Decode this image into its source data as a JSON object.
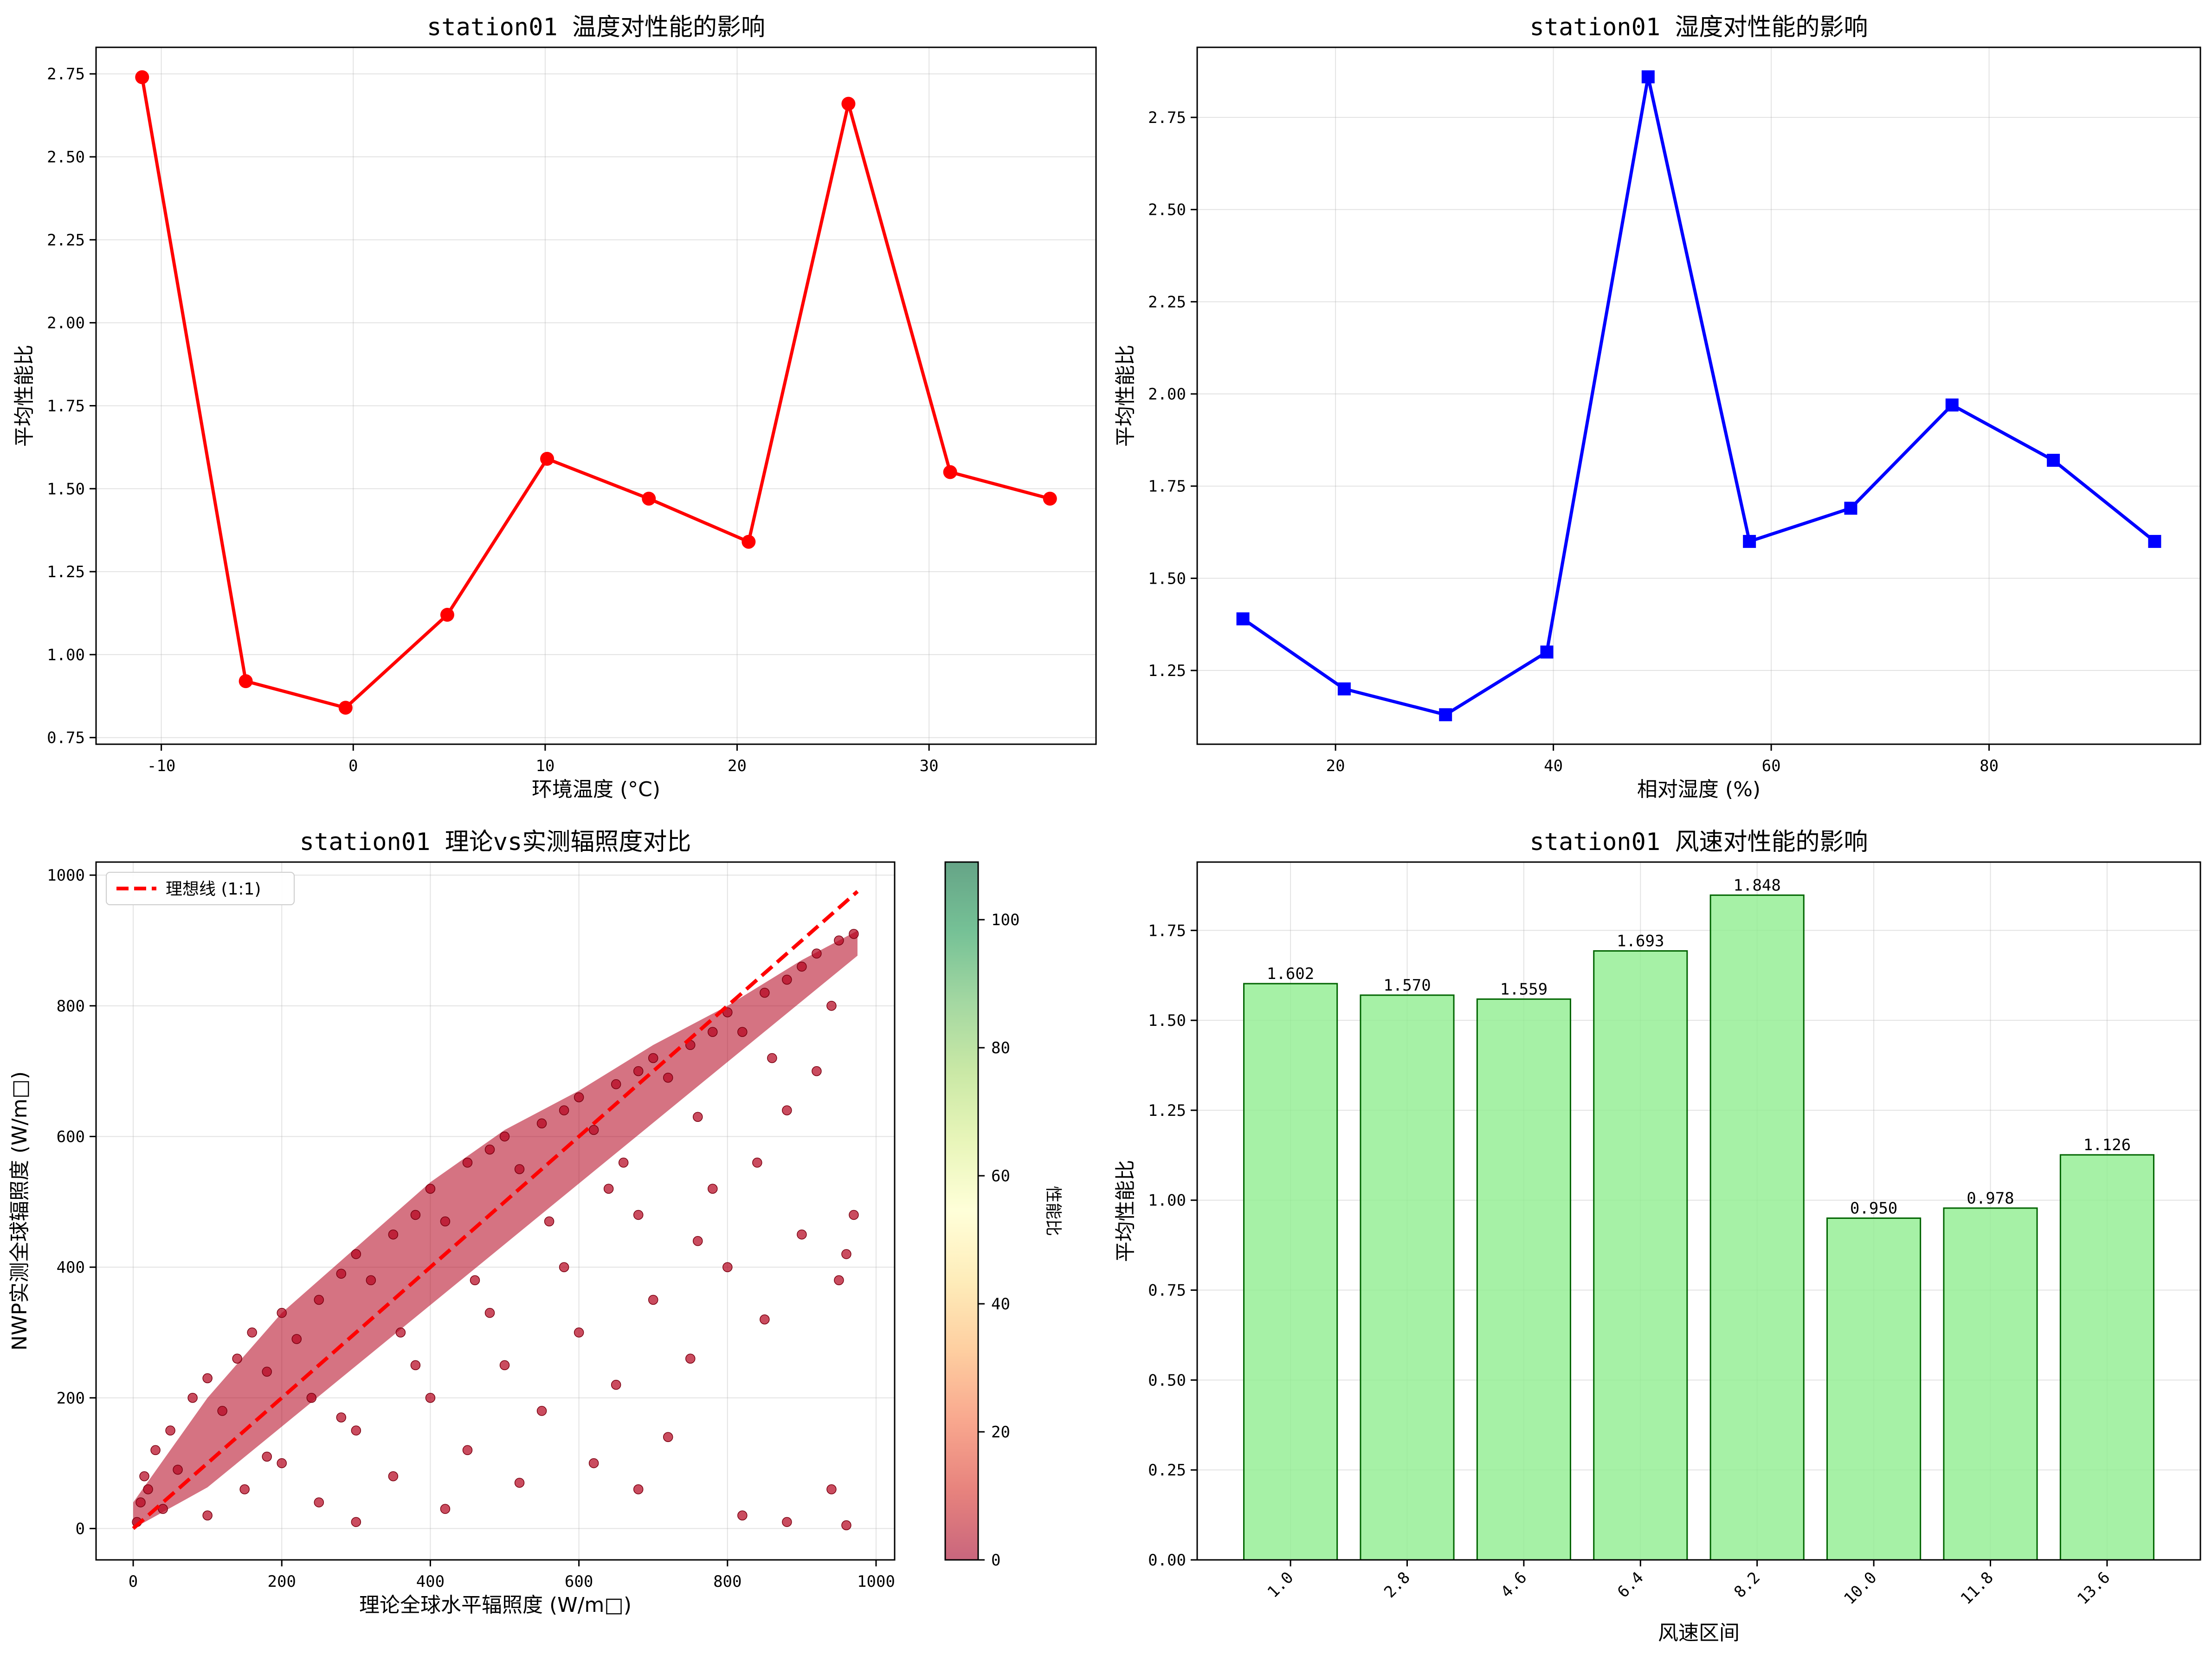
{
  "chart_data": [
    {
      "type": "line",
      "title": "station01 温度对性能的影响",
      "xlabel": "环境温度 (°C)",
      "ylabel": "平均性能比",
      "x": [
        -11.0,
        -5.6,
        -0.4,
        4.9,
        10.1,
        15.4,
        20.6,
        25.8,
        31.1,
        36.3
      ],
      "values": [
        2.74,
        0.92,
        0.84,
        1.12,
        1.59,
        1.47,
        1.34,
        2.66,
        1.55,
        1.47
      ],
      "xlim": [
        -13.4,
        38.7
      ],
      "ylim": [
        0.73,
        2.83
      ],
      "xticks": [
        -10,
        0,
        10,
        20,
        30
      ],
      "yticks": [
        0.75,
        1.0,
        1.25,
        1.5,
        1.75,
        2.0,
        2.25,
        2.5,
        2.75
      ],
      "color": "#ff0000",
      "marker": "circle",
      "grid": true
    },
    {
      "type": "line",
      "title": "station01 湿度对性能的影响",
      "xlabel": "相对湿度 (%)",
      "ylabel": "平均性能比",
      "x": [
        11.5,
        20.8,
        30.1,
        39.4,
        48.7,
        58.0,
        67.3,
        76.6,
        85.9,
        95.2
      ],
      "values": [
        1.39,
        1.2,
        1.13,
        1.3,
        2.86,
        1.6,
        1.69,
        1.97,
        1.82,
        1.6
      ],
      "xlim": [
        7.3,
        99.4
      ],
      "ylim": [
        1.05,
        2.94
      ],
      "xticks": [
        20,
        40,
        60,
        80
      ],
      "yticks": [
        1.25,
        1.5,
        1.75,
        2.0,
        2.25,
        2.5,
        2.75
      ],
      "color": "#0000ff",
      "marker": "square",
      "grid": true
    },
    {
      "type": "scatter",
      "title": "station01 理论vs实测辐照度对比",
      "xlabel": "理论全球水平辐照度 (W/m□)",
      "ylabel": "NWP实测全球辐照度 (W/m□)",
      "colorbar_label": "性能比",
      "colorbar_ticks": [
        0,
        20,
        40,
        60,
        80,
        100
      ],
      "colorbar_range": [
        0,
        109
      ],
      "colormap": "RdYlGn",
      "point_color": "#b3001b",
      "legend": {
        "label": "理想线 (1:1)",
        "position": "upper left"
      },
      "ideal_line": {
        "x": [
          0,
          975
        ],
        "y": [
          0,
          975
        ],
        "color": "#ff0000",
        "style": "dashed"
      },
      "upper_band": [
        [
          0,
          40
        ],
        [
          100,
          200
        ],
        [
          200,
          330
        ],
        [
          300,
          430
        ],
        [
          400,
          530
        ],
        [
          500,
          610
        ],
        [
          600,
          670
        ],
        [
          700,
          740
        ],
        [
          800,
          800
        ],
        [
          900,
          870
        ],
        [
          975,
          915
        ]
      ],
      "sample_points": [
        [
          5,
          10
        ],
        [
          10,
          40
        ],
        [
          15,
          80
        ],
        [
          20,
          60
        ],
        [
          30,
          120
        ],
        [
          40,
          30
        ],
        [
          50,
          150
        ],
        [
          60,
          90
        ],
        [
          80,
          200
        ],
        [
          100,
          230
        ],
        [
          120,
          180
        ],
        [
          140,
          260
        ],
        [
          160,
          300
        ],
        [
          180,
          240
        ],
        [
          200,
          330
        ],
        [
          220,
          290
        ],
        [
          250,
          350
        ],
        [
          280,
          390
        ],
        [
          300,
          420
        ],
        [
          320,
          380
        ],
        [
          350,
          450
        ],
        [
          380,
          480
        ],
        [
          400,
          520
        ],
        [
          420,
          470
        ],
        [
          450,
          560
        ],
        [
          480,
          580
        ],
        [
          500,
          600
        ],
        [
          520,
          550
        ],
        [
          550,
          620
        ],
        [
          580,
          640
        ],
        [
          600,
          660
        ],
        [
          620,
          610
        ],
        [
          650,
          680
        ],
        [
          680,
          700
        ],
        [
          700,
          720
        ],
        [
          720,
          690
        ],
        [
          750,
          740
        ],
        [
          780,
          760
        ],
        [
          800,
          790
        ],
        [
          820,
          760
        ],
        [
          850,
          820
        ],
        [
          880,
          840
        ],
        [
          900,
          860
        ],
        [
          920,
          880
        ],
        [
          950,
          900
        ],
        [
          970,
          910
        ],
        [
          100,
          20
        ],
        [
          150,
          60
        ],
        [
          200,
          100
        ],
        [
          250,
          40
        ],
        [
          300,
          150
        ],
        [
          350,
          80
        ],
        [
          400,
          200
        ],
        [
          450,
          120
        ],
        [
          500,
          250
        ],
        [
          550,
          180
        ],
        [
          600,
          300
        ],
        [
          650,
          220
        ],
        [
          700,
          350
        ],
        [
          750,
          260
        ],
        [
          800,
          400
        ],
        [
          850,
          320
        ],
        [
          900,
          450
        ],
        [
          950,
          380
        ],
        [
          960,
          420
        ],
        [
          970,
          480
        ],
        [
          300,
          10
        ],
        [
          420,
          30
        ],
        [
          520,
          70
        ],
        [
          620,
          100
        ],
        [
          720,
          140
        ],
        [
          820,
          20
        ],
        [
          880,
          10
        ],
        [
          940,
          60
        ],
        [
          960,
          5
        ],
        [
          680,
          60
        ],
        [
          240,
          200
        ],
        [
          360,
          300
        ],
        [
          460,
          380
        ],
        [
          560,
          470
        ],
        [
          660,
          560
        ],
        [
          760,
          630
        ],
        [
          860,
          720
        ],
        [
          940,
          800
        ],
        [
          780,
          520
        ],
        [
          880,
          640
        ],
        [
          580,
          400
        ],
        [
          680,
          480
        ],
        [
          480,
          330
        ],
        [
          380,
          250
        ],
        [
          280,
          170
        ],
        [
          180,
          110
        ],
        [
          760,
          440
        ],
        [
          840,
          560
        ],
        [
          920,
          700
        ],
        [
          640,
          520
        ]
      ],
      "xlim": [
        -50,
        1025
      ],
      "ylim": [
        -48,
        1020
      ],
      "xticks": [
        0,
        200,
        400,
        600,
        800,
        1000
      ],
      "yticks": [
        0,
        200,
        400,
        600,
        800,
        1000
      ],
      "grid": true
    },
    {
      "type": "bar",
      "title": "station01 风速对性能的影响",
      "xlabel": "风速区间",
      "ylabel": "平均性能比",
      "categories": [
        "1.0",
        "2.8",
        "4.6",
        "6.4",
        "8.2",
        "10.0",
        "11.8",
        "13.6"
      ],
      "values": [
        1.602,
        1.57,
        1.559,
        1.693,
        1.848,
        0.95,
        0.978,
        1.126
      ],
      "data_labels": [
        "1.602",
        "1.570",
        "1.559",
        "1.693",
        "1.848",
        "0.950",
        "0.978",
        "1.126"
      ],
      "ylim": [
        0,
        1.94
      ],
      "yticks": [
        0.0,
        0.25,
        0.5,
        0.75,
        1.0,
        1.25,
        1.5,
        1.75
      ],
      "bar_color": "#90ee90",
      "edge_color": "#006400",
      "grid": true
    }
  ]
}
